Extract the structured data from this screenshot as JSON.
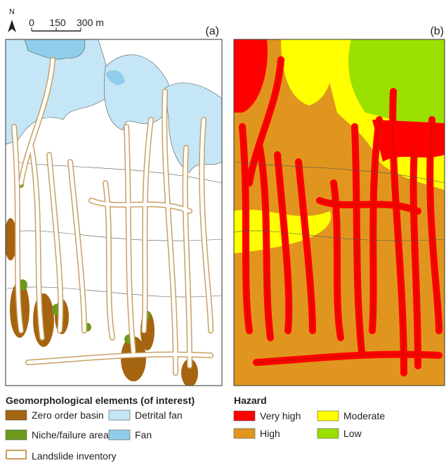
{
  "north_arrow": "N",
  "scale_bar": {
    "labels": [
      "0",
      "150",
      "300 m"
    ]
  },
  "panels": [
    {
      "label": "(a)"
    },
    {
      "label": "(b)"
    }
  ],
  "legends": [
    {
      "title": "Geomorphological elements (of interest)",
      "items": [
        {
          "label": "Zero order basin",
          "color": "#a5640f"
        },
        {
          "label": "Detrital fan",
          "color": "#c4e6f7"
        },
        {
          "label": "Niche/failure areas",
          "color": "#6b9a1a"
        },
        {
          "label": "Fan",
          "color": "#8fcdeb"
        },
        {
          "label": "Landslide inventory",
          "color": "#c8a060",
          "outline": true
        }
      ]
    },
    {
      "title": "Hazard",
      "items": [
        {
          "label": "Very high",
          "color": "#ff0000"
        },
        {
          "label": "Moderate",
          "color": "#ffff00"
        },
        {
          "label": "High",
          "color": "#e0961e"
        },
        {
          "label": "Low",
          "color": "#9be000"
        }
      ]
    }
  ]
}
